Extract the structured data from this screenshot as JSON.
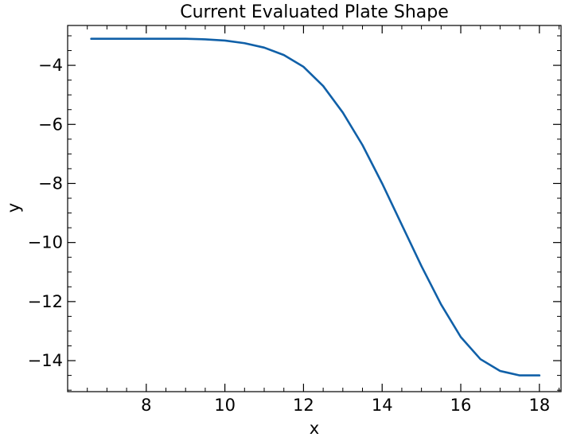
{
  "chart_data": {
    "type": "line",
    "title": "Current Evaluated Plate Shape",
    "xlabel": "x",
    "ylabel": "y",
    "xlim": [
      6.0,
      18.55
    ],
    "ylim": [
      -15.05,
      -2.65
    ],
    "xticks": [
      8,
      10,
      12,
      14,
      16,
      18
    ],
    "xtick_labels": [
      "8",
      "10",
      "12",
      "14",
      "16",
      "18"
    ],
    "yticks": [
      -4,
      -6,
      -8,
      -10,
      -12,
      -14
    ],
    "ytick_labels": [
      "−4",
      "−6",
      "−8",
      "−10",
      "−12",
      "−14"
    ],
    "grid": false,
    "line_color": "#1060a8",
    "series": [
      {
        "x": [
          6.6,
          7.0,
          7.5,
          8.0,
          8.5,
          9.0,
          9.5,
          10.0,
          10.5,
          11.0,
          11.5,
          12.0,
          12.5,
          13.0,
          13.5,
          14.0,
          14.5,
          15.0,
          15.5,
          16.0,
          16.5,
          17.0,
          17.5,
          18.0
        ],
        "y": [
          -3.1,
          -3.1,
          -3.1,
          -3.1,
          -3.1,
          -3.1,
          -3.12,
          -3.16,
          -3.25,
          -3.4,
          -3.65,
          -4.05,
          -4.7,
          -5.6,
          -6.7,
          -8.0,
          -9.4,
          -10.8,
          -12.1,
          -13.2,
          -13.95,
          -14.35,
          -14.5,
          -14.5
        ]
      }
    ]
  }
}
